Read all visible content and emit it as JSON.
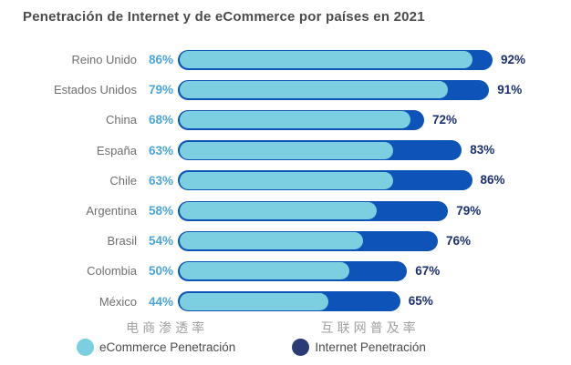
{
  "title": "Penetración de Internet y de eCommerce por países en 2021",
  "chart_data": {
    "type": "bar",
    "orientation": "horizontal",
    "title": "Penetración de Internet y de eCommerce por países en 2021",
    "categories": [
      "Reino Unido",
      "Estados Unidos",
      "China",
      "España",
      "Chile",
      "Argentina",
      "Brasil",
      "Colombia",
      "México"
    ],
    "series": [
      {
        "name": "eCommerce Penetración",
        "values": [
          86,
          79,
          68,
          63,
          63,
          58,
          54,
          50,
          44
        ]
      },
      {
        "name": "Internet Penetración",
        "values": [
          92,
          91,
          72,
          83,
          86,
          79,
          76,
          67,
          65
        ]
      }
    ],
    "value_suffix": "%",
    "xlim": [
      0,
      100
    ],
    "grid": false,
    "legend_position": "bottom"
  },
  "legend": {
    "ecommerce": {
      "label_cn": "电商渗透率",
      "label": "eCommerce Penetración"
    },
    "internet": {
      "label_cn": "互联网普及率",
      "label": "Internet Penetración"
    }
  },
  "colors": {
    "ecommerce_bar": "#7bcfe0",
    "internet_bar": "#0e53b7",
    "ecommerce_value_text": "#4ba6db",
    "internet_value_text": "#1b3070",
    "legend_internet_dot": "#2b3b76",
    "country_label_text": "#6f6f6f",
    "title_text": "#4c4c4c",
    "legend_cn_text": "#a0a0a0"
  }
}
